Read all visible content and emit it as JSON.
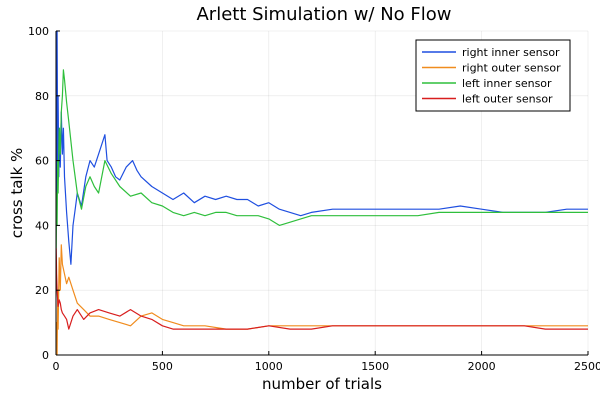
{
  "chart_data": {
    "type": "line",
    "title": "Arlett Simulation w/ No Flow",
    "xlabel": "number of trials",
    "ylabel": "cross talk %",
    "xlim": [
      0,
      2500
    ],
    "ylim": [
      0,
      100
    ],
    "xticks": [
      0,
      500,
      1000,
      1500,
      2000,
      2500
    ],
    "yticks": [
      0,
      20,
      40,
      60,
      80,
      100
    ],
    "grid": true,
    "legend_position": "top-right",
    "series": [
      {
        "name": "right inner sensor",
        "color": "#1f4fe0",
        "x": [
          1,
          3,
          5,
          8,
          10,
          13,
          16,
          20,
          25,
          30,
          35,
          40,
          50,
          60,
          70,
          80,
          90,
          100,
          120,
          140,
          160,
          180,
          200,
          220,
          230,
          240,
          260,
          280,
          300,
          330,
          360,
          380,
          400,
          450,
          500,
          550,
          600,
          650,
          700,
          750,
          800,
          850,
          900,
          950,
          1000,
          1050,
          1100,
          1150,
          1200,
          1300,
          1400,
          1500,
          1600,
          1700,
          1800,
          1900,
          2000,
          2100,
          2200,
          2300,
          2400,
          2500
        ],
        "y": [
          100,
          50,
          100,
          60,
          80,
          55,
          70,
          58,
          75,
          62,
          70,
          55,
          44,
          35,
          28,
          40,
          45,
          50,
          46,
          55,
          60,
          58,
          62,
          66,
          68,
          60,
          58,
          55,
          54,
          58,
          60,
          57,
          55,
          52,
          50,
          48,
          50,
          47,
          49,
          48,
          49,
          48,
          48,
          46,
          47,
          45,
          44,
          43,
          44,
          45,
          45,
          45,
          45,
          45,
          45,
          46,
          45,
          44,
          44,
          44,
          45,
          45
        ]
      },
      {
        "name": "right outer sensor",
        "color": "#f08c1e",
        "x": [
          1,
          3,
          5,
          8,
          10,
          15,
          20,
          25,
          30,
          40,
          50,
          60,
          80,
          100,
          130,
          160,
          200,
          250,
          300,
          350,
          400,
          450,
          500,
          550,
          600,
          700,
          800,
          900,
          1000,
          1100,
          1200,
          1300,
          1400,
          1500,
          1600,
          1700,
          1800,
          1900,
          2000,
          2100,
          2200,
          2300,
          2400,
          2500
        ],
        "y": [
          0,
          10,
          0,
          20,
          8,
          30,
          20,
          34,
          28,
          25,
          22,
          24,
          20,
          16,
          14,
          12,
          12,
          11,
          10,
          9,
          12,
          13,
          11,
          10,
          9,
          9,
          8,
          8,
          9,
          9,
          9,
          9,
          9,
          9,
          9,
          9,
          9,
          9,
          9,
          9,
          9,
          9,
          9,
          9
        ]
      },
      {
        "name": "left inner sensor",
        "color": "#2fbf3c",
        "x": [
          1,
          3,
          5,
          8,
          10,
          15,
          20,
          25,
          30,
          35,
          40,
          50,
          60,
          70,
          80,
          100,
          120,
          140,
          160,
          180,
          200,
          230,
          260,
          300,
          350,
          400,
          450,
          500,
          550,
          600,
          650,
          700,
          750,
          800,
          850,
          900,
          950,
          1000,
          1050,
          1100,
          1150,
          1200,
          1300,
          1400,
          1500,
          1600,
          1700,
          1800,
          1900,
          2000,
          2100,
          2200,
          2300,
          2400,
          2500
        ],
        "y": [
          33,
          50,
          40,
          60,
          50,
          70,
          62,
          75,
          80,
          88,
          85,
          78,
          72,
          66,
          60,
          50,
          45,
          52,
          55,
          52,
          50,
          60,
          56,
          52,
          49,
          50,
          47,
          46,
          44,
          43,
          44,
          43,
          44,
          44,
          43,
          43,
          43,
          42,
          40,
          41,
          42,
          43,
          43,
          43,
          43,
          43,
          43,
          44,
          44,
          44,
          44,
          44,
          44,
          44,
          44
        ]
      },
      {
        "name": "left outer sensor",
        "color": "#d81e1e",
        "x": [
          1,
          3,
          5,
          8,
          10,
          15,
          20,
          25,
          30,
          40,
          50,
          60,
          80,
          100,
          130,
          160,
          200,
          250,
          300,
          350,
          400,
          450,
          500,
          550,
          600,
          700,
          800,
          900,
          1000,
          1100,
          1200,
          1300,
          1400,
          1500,
          1600,
          1700,
          1800,
          1900,
          2000,
          2100,
          2200,
          2300,
          2400,
          2500
        ],
        "y": [
          33,
          25,
          20,
          17,
          15,
          17,
          16,
          14,
          13,
          12,
          11,
          8,
          12,
          14,
          11,
          13,
          14,
          13,
          12,
          14,
          12,
          11,
          9,
          8,
          8,
          8,
          8,
          8,
          9,
          8,
          8,
          9,
          9,
          9,
          9,
          9,
          9,
          9,
          9,
          9,
          9,
          8,
          8,
          8
        ]
      }
    ]
  }
}
